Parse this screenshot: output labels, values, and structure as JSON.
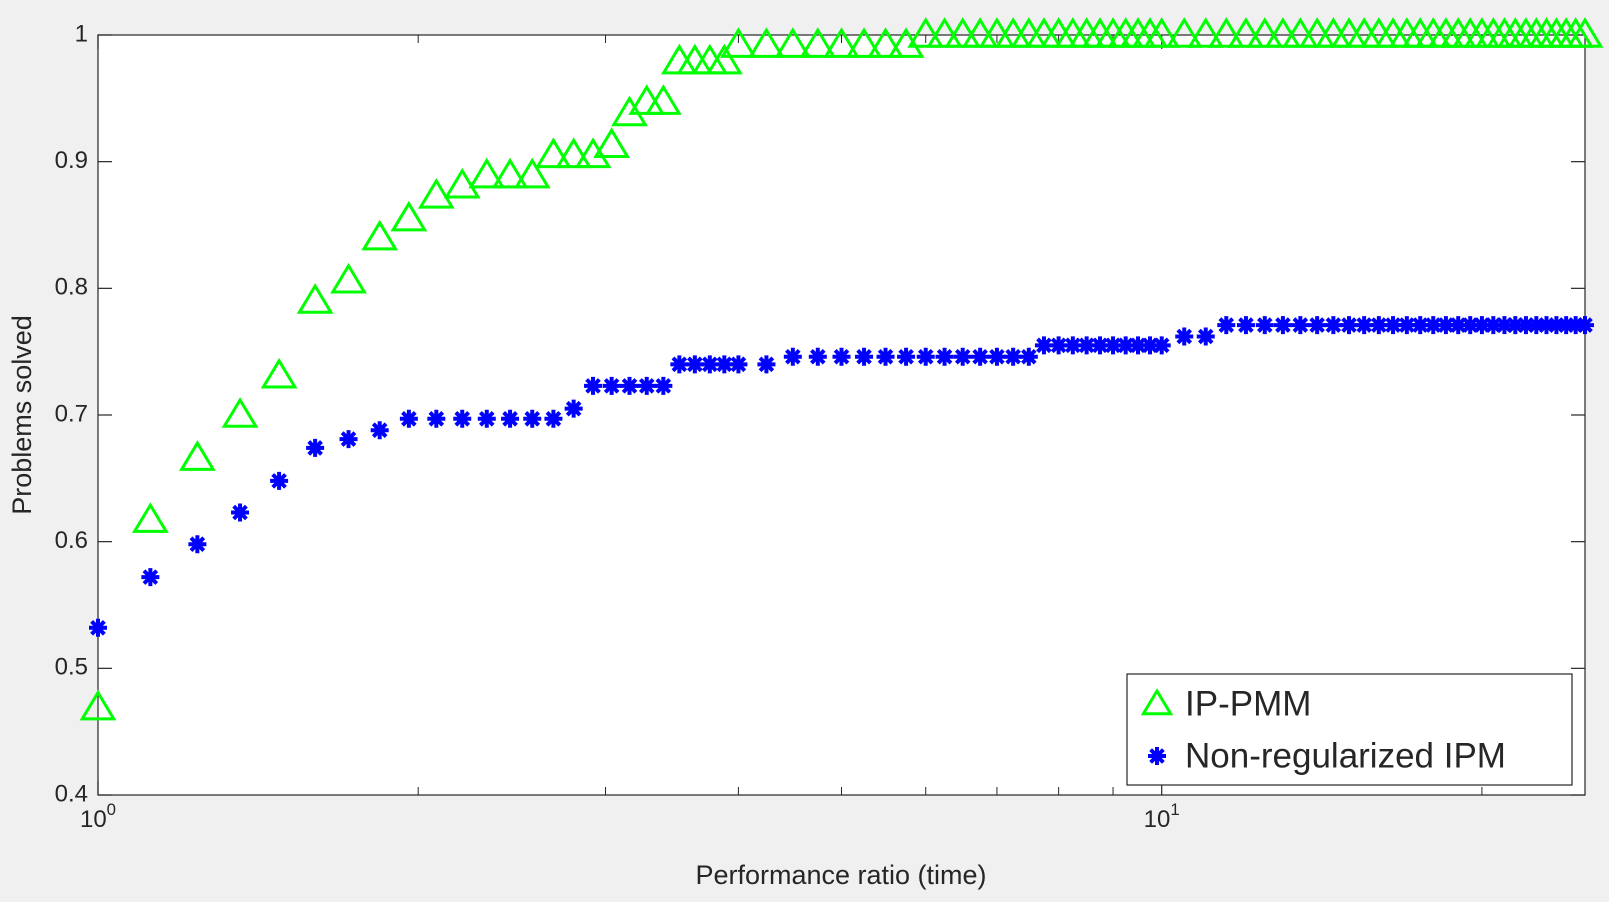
{
  "chart_data": {
    "type": "scatter",
    "xlabel": "Performance ratio (time)",
    "ylabel": "Problems solved",
    "xscale": "log",
    "xlim": [
      1,
      25
    ],
    "ylim": [
      0.4,
      1
    ],
    "xticks": [
      {
        "value": 1,
        "label": "10^0"
      },
      {
        "value": 10,
        "label": "10^1"
      }
    ],
    "xminor": [
      2,
      3,
      4,
      5,
      6,
      7,
      8,
      9,
      20
    ],
    "yticks": [
      0.4,
      0.5,
      0.6,
      0.7,
      0.8,
      0.9,
      1
    ],
    "legend": "lower right",
    "x": [
      1,
      1.12,
      1.24,
      1.36,
      1.48,
      1.6,
      1.72,
      1.84,
      1.96,
      2.08,
      2.2,
      2.32,
      2.44,
      2.56,
      2.68,
      2.8,
      2.92,
      3.04,
      3.16,
      3.28,
      3.4,
      3.52,
      3.64,
      3.76,
      3.88,
      4,
      4.25,
      4.5,
      4.75,
      5,
      5.25,
      5.5,
      5.75,
      6,
      6.25,
      6.5,
      6.75,
      7,
      7.25,
      7.5,
      7.75,
      8,
      8.25,
      8.5,
      8.75,
      9,
      9.25,
      9.5,
      9.75,
      10,
      10.5,
      11,
      11.5,
      12,
      12.5,
      13,
      13.5,
      14,
      14.5,
      15,
      15.5,
      16,
      16.5,
      17,
      17.5,
      18,
      18.5,
      19,
      19.5,
      20,
      20.5,
      21,
      21.5,
      22,
      22.5,
      23,
      23.5,
      24,
      24.5,
      25
    ],
    "series": [
      {
        "name": "IP-PMM",
        "color": "#00ff00",
        "marker": "triangle",
        "values": [
          0.469,
          0.617,
          0.666,
          0.7,
          0.731,
          0.79,
          0.806,
          0.84,
          0.855,
          0.873,
          0.881,
          0.889,
          0.889,
          0.889,
          0.905,
          0.905,
          0.905,
          0.913,
          0.938,
          0.947,
          0.947,
          0.979,
          0.979,
          0.979,
          0.979,
          0.992,
          0.992,
          0.992,
          0.992,
          0.992,
          0.992,
          0.992,
          0.992,
          1,
          1,
          1,
          1,
          1,
          1,
          1,
          1,
          1,
          1,
          1,
          1,
          1,
          1,
          1,
          1,
          1,
          1,
          1,
          1,
          1,
          1,
          1,
          1,
          1,
          1,
          1,
          1,
          1,
          1,
          1,
          1,
          1,
          1,
          1,
          1,
          1,
          1,
          1,
          1,
          1,
          1,
          1,
          1,
          1,
          1,
          1
        ]
      },
      {
        "name": "Non-regularized IPM",
        "color": "#0000ff",
        "marker": "asterisk",
        "values": [
          0.532,
          0.572,
          0.598,
          0.623,
          0.648,
          0.674,
          0.681,
          0.688,
          0.697,
          0.697,
          0.697,
          0.697,
          0.697,
          0.697,
          0.697,
          0.705,
          0.723,
          0.723,
          0.723,
          0.723,
          0.723,
          0.74,
          0.74,
          0.74,
          0.74,
          0.74,
          0.74,
          0.746,
          0.746,
          0.746,
          0.746,
          0.746,
          0.746,
          0.746,
          0.746,
          0.746,
          0.746,
          0.746,
          0.746,
          0.746,
          0.755,
          0.755,
          0.755,
          0.755,
          0.755,
          0.755,
          0.755,
          0.755,
          0.755,
          0.755,
          0.762,
          0.762,
          0.771,
          0.771,
          0.771,
          0.771,
          0.771,
          0.771,
          0.771,
          0.771,
          0.771,
          0.771,
          0.771,
          0.771,
          0.771,
          0.771,
          0.771,
          0.771,
          0.771,
          0.771,
          0.771,
          0.771,
          0.771,
          0.771,
          0.771,
          0.771,
          0.771,
          0.771,
          0.771,
          0.771
        ]
      }
    ]
  }
}
